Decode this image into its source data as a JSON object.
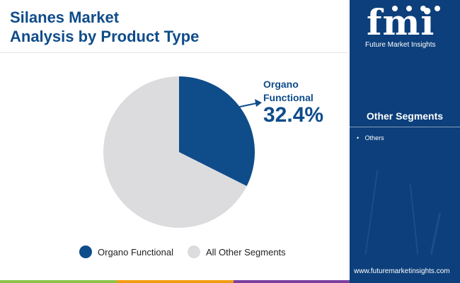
{
  "header": {
    "title_line1": "Silanes Market",
    "title_line2": "Analysis by Product Type"
  },
  "chart_data": {
    "type": "pie",
    "title": "Silanes Market Analysis by Product Type",
    "categories": [
      "Organo Functional",
      "All Other Segments"
    ],
    "values": [
      32.4,
      67.6
    ],
    "unit": "%",
    "colors": [
      "#0f4c8a",
      "#dcdcdf"
    ],
    "legend_position": "bottom"
  },
  "callout": {
    "label_line1": "Organo",
    "label_line2": "Functional",
    "value": "32.4%"
  },
  "legend": {
    "items": [
      {
        "label": "Organo Functional",
        "color": "#0f4c8a"
      },
      {
        "label": "All Other Segments",
        "color": "#dcdcdf"
      }
    ]
  },
  "sidebar": {
    "brand": "fmi",
    "brand_sub": "Future Market Insights",
    "segments_title": "Other Segments",
    "segments": [
      "Others"
    ],
    "url": "www.futuremarketinsights.com"
  },
  "colors": {
    "primary": "#0f4c8a",
    "panel": "#0c3f7b",
    "other": "#dcdcdf"
  }
}
